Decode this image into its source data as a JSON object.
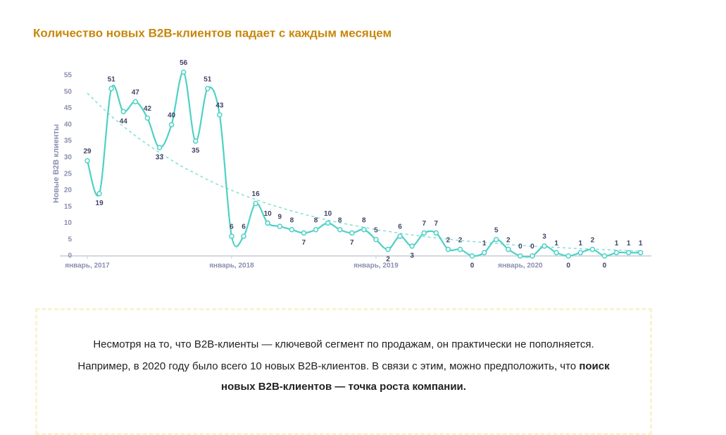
{
  "chart_data": {
    "type": "line",
    "title": "Количество новых B2B-клиентов падает с каждым месяцем",
    "y_label": "Новые B2B клиенты",
    "categories": [
      "январь, 2017",
      null,
      null,
      null,
      null,
      null,
      null,
      null,
      null,
      null,
      null,
      null,
      "январь, 2018",
      null,
      null,
      null,
      null,
      null,
      null,
      null,
      null,
      null,
      null,
      null,
      "январь, 2019",
      null,
      null,
      null,
      null,
      null,
      null,
      null,
      null,
      null,
      null,
      null,
      "январь, 2020",
      null,
      null,
      null,
      null,
      null,
      null,
      null,
      null,
      null,
      null
    ],
    "values": [
      29,
      19,
      51,
      44,
      47,
      42,
      33,
      40,
      56,
      35,
      51,
      43,
      6,
      6,
      16,
      10,
      9,
      8,
      7,
      8,
      10,
      8,
      7,
      8,
      5,
      2,
      6,
      3,
      7,
      7,
      2,
      2,
      0,
      1,
      5,
      2,
      0,
      0,
      3,
      1,
      0,
      1,
      2,
      0,
      1,
      1,
      1
    ],
    "color": "#4fd1c5",
    "trend": [
      49.6,
      46.0,
      42.6,
      39.5,
      36.6,
      34.0,
      31.5,
      29.2,
      27.0,
      25.1,
      23.2,
      21.5,
      20.0,
      18.5,
      17.2,
      15.9,
      14.8,
      13.7,
      12.7,
      11.8,
      10.9,
      10.1,
      9.4,
      8.7,
      8.0,
      7.5,
      6.9,
      6.4,
      5.9,
      5.5,
      5.1,
      4.7,
      4.4,
      4.1,
      3.8,
      3.5,
      3.2,
      3.0,
      2.8,
      2.6,
      2.4,
      2.2,
      2.1,
      1.9,
      1.8,
      1.6,
      1.5
    ],
    "ylim": [
      0,
      55
    ],
    "yticks": [
      0,
      5,
      10,
      15,
      20,
      25,
      30,
      35,
      40,
      45,
      50,
      55
    ],
    "grid": false
  },
  "text": {
    "line1": "Несмотря на то, что B2B-клиенты — ключевой сегмент по продажам, он практически не пополняется.",
    "line2": "Например, в 2020 году было всего 10 новых B2B-клиентов. В связи с этим, можно предположить, что",
    "line2_bold": "поиск",
    "line3_bold": "новых B2B-клиентов — точка роста компании."
  }
}
